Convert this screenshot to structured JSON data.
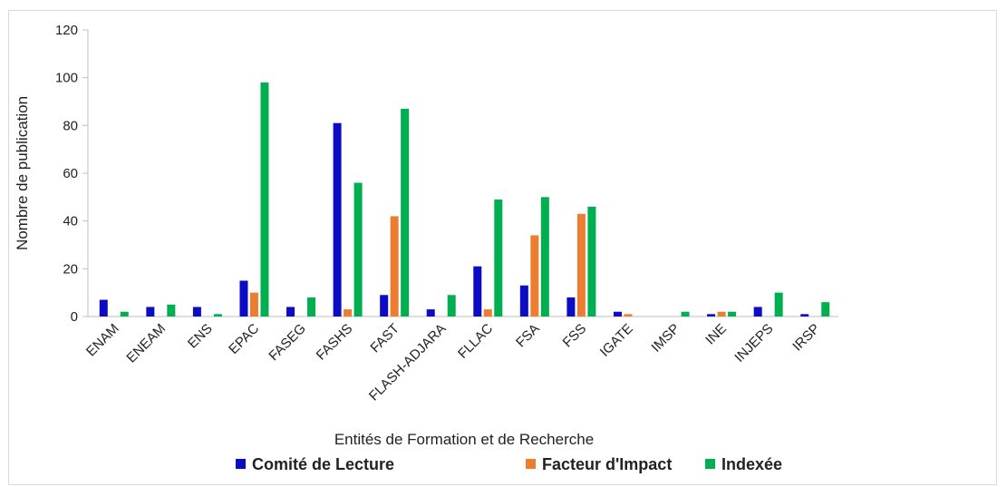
{
  "chart_data": {
    "type": "bar",
    "categories": [
      "ENAM",
      "ENEAM",
      "ENS",
      "EPAC",
      "FASEG",
      "FASHS",
      "FAST",
      "FLASH-ADJARA",
      "FLLAC",
      "FSA",
      "FSS",
      "IGATE",
      "IMSP",
      "INE",
      "INJEPS",
      "IRSP"
    ],
    "series": [
      {
        "name": "Comité de Lecture",
        "color": "#0c0cc4",
        "values": [
          7,
          4,
          4,
          15,
          4,
          81,
          9,
          3,
          21,
          13,
          8,
          2,
          0,
          1,
          4,
          1
        ]
      },
      {
        "name": "Facteur d'Impact",
        "color": "#ed7d31",
        "values": [
          0,
          0,
          0,
          10,
          0,
          3,
          42,
          0,
          3,
          34,
          43,
          1,
          0,
          2,
          0,
          0
        ]
      },
      {
        "name": "Indexée",
        "color": "#00b050",
        "values": [
          2,
          5,
          1,
          98,
          8,
          56,
          87,
          9,
          49,
          50,
          46,
          0,
          2,
          2,
          10,
          6
        ]
      }
    ],
    "xlabel": "Entités de Formation et de Recherche",
    "ylabel": "Nombre de publication",
    "ylim": [
      0,
      120
    ],
    "yticks": [
      0,
      20,
      40,
      60,
      80,
      100,
      120
    ],
    "legend": "bottom"
  }
}
